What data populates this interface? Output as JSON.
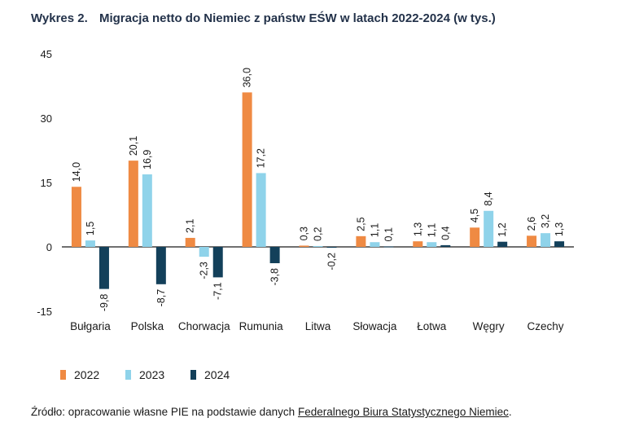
{
  "header": {
    "figure_label": "Wykres 2.",
    "title": "Migracja netto do Niemiec z państw EŚW w latach 2022-2024 (w tys.)"
  },
  "chart_data": {
    "type": "bar",
    "categories": [
      "Bułgaria",
      "Polska",
      "Chorwacja",
      "Rumunia",
      "Litwa",
      "Słowacja",
      "Łotwa",
      "Węgry",
      "Czechy"
    ],
    "series": [
      {
        "name": "2022",
        "color": "#ef8a43",
        "values": [
          14.0,
          20.1,
          2.1,
          36.0,
          0.3,
          2.5,
          1.3,
          4.5,
          2.6
        ],
        "labels": [
          "14,0",
          "20,1",
          "2,1",
          "36,0",
          "0,3",
          "2,5",
          "1,3",
          "4,5",
          "2,6"
        ]
      },
      {
        "name": "2023",
        "color": "#8fd3ea",
        "values": [
          1.5,
          16.9,
          -2.3,
          17.2,
          0.2,
          1.1,
          1.1,
          8.4,
          3.2
        ],
        "labels": [
          "1,5",
          "16,9",
          "-2,3",
          "17,2",
          "0,2",
          "1,1",
          "1,1",
          "8,4",
          "3,2"
        ]
      },
      {
        "name": "2024",
        "color": "#13405a",
        "values": [
          -9.8,
          -8.7,
          -7.1,
          -3.8,
          -0.2,
          0.1,
          0.4,
          1.2,
          1.3
        ],
        "labels": [
          "-9,8",
          "-8,7",
          "-7,1",
          "-3,8",
          "-0,2",
          "0,1",
          "0,4",
          "1,2",
          "1,3"
        ]
      }
    ],
    "yticks": [
      45,
      30,
      15,
      0,
      -15
    ],
    "ylim": [
      -15,
      45
    ],
    "grid": false,
    "legend_position": "bottom-left"
  },
  "footer": {
    "source_prefix": "Źródło: opracowanie własne PIE na podstawie danych ",
    "source_link": "Federalnego Biura Statystycznego Niemiec",
    "source_suffix": "."
  }
}
